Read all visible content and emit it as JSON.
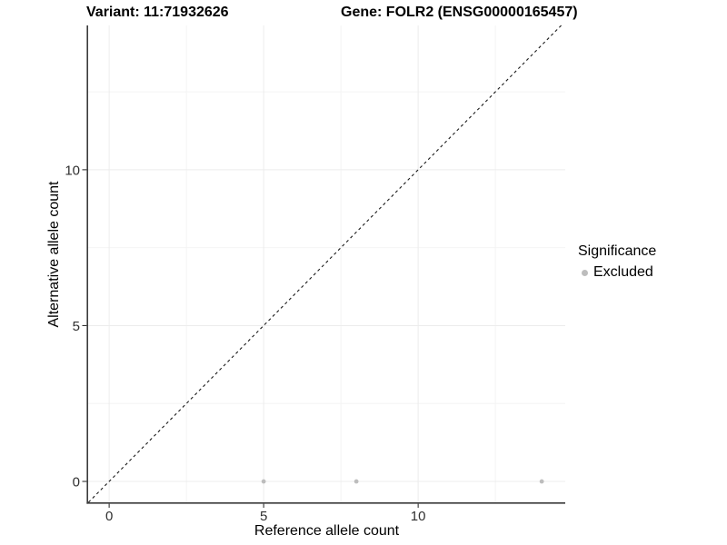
{
  "header": {
    "variant_title": "Variant: 11:71932626",
    "gene_title": "Gene: FOLR2 (ENSG00000165457)"
  },
  "axes": {
    "x_label": "Reference allele count",
    "y_label": "Alternative allele count"
  },
  "legend": {
    "title": "Significance",
    "items": [
      {
        "label": "Excluded",
        "color": "#bdbdbd"
      }
    ]
  },
  "colors": {
    "point": "#bdbdbd",
    "grid_major": "#ececec",
    "grid_minor": "#f4f4f4",
    "axis_line": "#3b3b3b",
    "tick_mark": "#333333",
    "tick_label": "#303030",
    "identity_line": "#1a1a1a",
    "background": "#ffffff"
  },
  "chart_data": {
    "type": "scatter",
    "title": "Variant: 11:71932626 / Gene: FOLR2 (ENSG00000165457)",
    "xlabel": "Reference allele count",
    "ylabel": "Alternative allele count",
    "series": [
      {
        "name": "Excluded",
        "color": "#bdbdbd",
        "points": [
          {
            "x": 5,
            "y": 0
          },
          {
            "x": 8,
            "y": 0
          },
          {
            "x": 14,
            "y": 0
          }
        ]
      }
    ],
    "x_ticks": [
      0,
      5,
      10
    ],
    "y_ticks": [
      0,
      5,
      10
    ],
    "x_minor_ticks": [
      2.5,
      7.5,
      12.5
    ],
    "y_minor_ticks": [
      2.5,
      7.5,
      12.5
    ],
    "xlim": [
      -0.68,
      14.76
    ],
    "ylim": [
      -0.67,
      14.63
    ],
    "identity_line": {
      "equation": "y = x",
      "style": "dashed"
    },
    "grid": true,
    "legend_position": "right",
    "legend_title": "Significance"
  }
}
